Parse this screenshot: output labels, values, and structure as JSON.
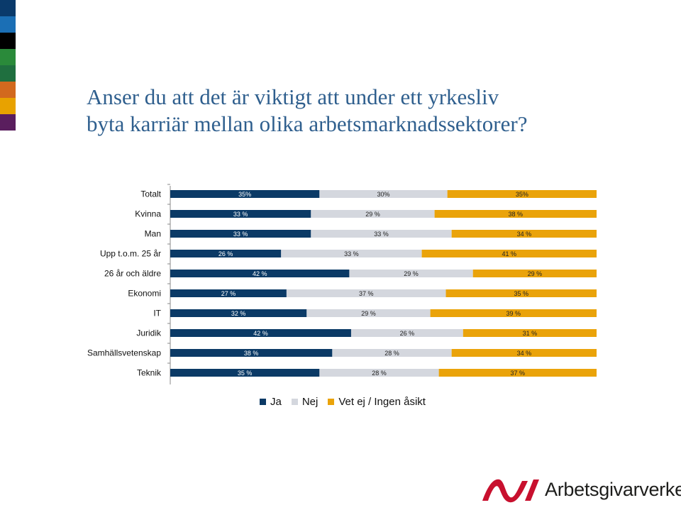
{
  "title_lines": [
    "Anser du att det är viktigt att under ett yrkesliv",
    "byta karriär mellan olika arbetsmarknadssektorer?"
  ],
  "brand": {
    "stripe_colors": [
      "#0a3a6b",
      "#1b6fb5",
      "#000000",
      "#2a8a3a",
      "#1f6f3f",
      "#d2691e",
      "#e8a200",
      "#5a1e5e"
    ],
    "logo_text": "Arbetsgivarverket",
    "logo_color": "#c8102e"
  },
  "chart_data": {
    "type": "bar",
    "orientation": "horizontal",
    "stacked": true,
    "normalized": true,
    "categories": [
      "Totalt",
      "Kvinna",
      "Man",
      "Upp t.o.m. 25 år",
      "26 år och äldre",
      "Ekonomi",
      "IT",
      "Juridik",
      "Samhällsvetenskap",
      "Teknik"
    ],
    "series": [
      {
        "name": "Ja",
        "color": "#0b3a66",
        "values": [
          35,
          33,
          33,
          26,
          42,
          27,
          32,
          42,
          38,
          35
        ],
        "labels": [
          "35%",
          "33 %",
          "33 %",
          "26 %",
          "42 %",
          "27 %",
          "32 %",
          "42 %",
          "38 %",
          "35 %"
        ]
      },
      {
        "name": "Nej",
        "color": "#d4d7de",
        "values": [
          30,
          29,
          33,
          33,
          29,
          37,
          29,
          26,
          28,
          28
        ],
        "labels": [
          "30%",
          "29 %",
          "33 %",
          "33 %",
          "29 %",
          "37 %",
          "29 %",
          "26 %",
          "28 %",
          "28 %"
        ]
      },
      {
        "name": "Vet ej / Ingen åsikt",
        "color": "#eaa30a",
        "values": [
          35,
          38,
          34,
          41,
          29,
          35,
          39,
          31,
          34,
          37
        ],
        "labels": [
          "35%",
          "38 %",
          "34 %",
          "41 %",
          "29 %",
          "35 %",
          "39 %",
          "31 %",
          "34 %",
          "37 %"
        ]
      }
    ],
    "legend_position": "bottom",
    "grid": false
  }
}
